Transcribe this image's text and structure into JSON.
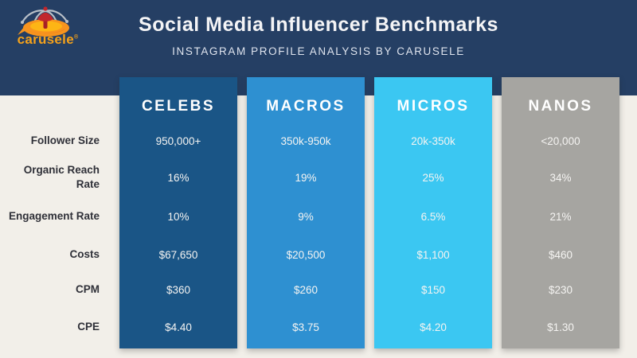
{
  "header": {
    "title": "Social Media Influencer Benchmarks",
    "subtitle": "INSTAGRAM PROFILE ANALYSIS BY CARUSELE",
    "logo_text": "carusele",
    "logo_reg_mark": "®"
  },
  "colors": {
    "header_bg": "#253f64",
    "page_bg": "#f2efe9",
    "title_text": "#f4f4f6",
    "subtitle_text": "#dfe4ee",
    "row_label_text": "#2f3038",
    "cell_text": "#f5f4f2",
    "logo_orange": "#f7941e",
    "logo_orange_dark": "#e4701e",
    "logo_red": "#c1272d",
    "logo_gray_arms": "#b9c0c8",
    "logo_text_orange": "#f5a21b"
  },
  "chart_data": {
    "type": "table",
    "title": "Social Media Influencer Benchmarks",
    "subtitle": "INSTAGRAM PROFILE ANALYSIS BY CARUSELE",
    "columns": [
      "CELEBS",
      "MACROS",
      "MICROS",
      "NANOS"
    ],
    "column_colors": [
      "#1a5586",
      "#2e90d1",
      "#3bc7f2",
      "#a6a5a1"
    ],
    "row_labels": [
      "Follower Size",
      "Organic Reach Rate",
      "Engagement Rate",
      "Costs",
      "CPM",
      "CPE"
    ],
    "rows": [
      [
        "950,000+",
        "350k-950k",
        "20k-350k",
        "<20,000"
      ],
      [
        "16%",
        "19%",
        "25%",
        "34%"
      ],
      [
        "10%",
        "9%",
        "6.5%",
        "21%"
      ],
      [
        "$67,650",
        "$20,500",
        "$1,100",
        "$460"
      ],
      [
        "$360",
        "$260",
        "$150",
        "$230"
      ],
      [
        "$4.40",
        "$3.75",
        "$4.20",
        "$1.30"
      ]
    ],
    "layout": {
      "legend": false,
      "grid": false,
      "orientation": "columns-as-categories"
    }
  }
}
